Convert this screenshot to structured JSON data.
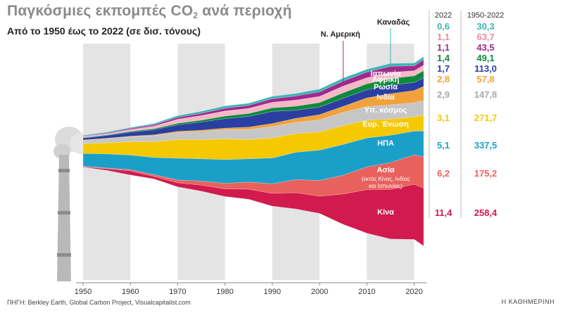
{
  "title_main": "Παγκόσμιες εκπομπές CO",
  "title_sub": "2",
  "title_tail": " ανά περιοχή",
  "subtitle": "Από το 1950 έως το 2022 (σε δισ. τόνους)",
  "source": "ΠΗΓΗ: Berkley Earth, Global Carbon Project, Visualcapitalist.com",
  "brand": "Η ΚΑΘΗΜΕΡΙΝΗ",
  "col_2022_header": "2022",
  "col_total_header": "1950-2022",
  "chart_data": {
    "type": "area",
    "title": "Παγκόσμιες εκπομπές CO2 ανά περιοχή",
    "subtitle": "Από το 1950 έως το 2022 (σε δισ. τόνους)",
    "x": [
      1950,
      1955,
      1960,
      1965,
      1970,
      1975,
      1980,
      1985,
      1990,
      1995,
      2000,
      2005,
      2010,
      2015,
      2020,
      2022
    ],
    "xticks": [
      "1950",
      "1960",
      "1970",
      "1980",
      "1990",
      "2000",
      "2010",
      "2020"
    ],
    "xlim": [
      1950,
      2022
    ],
    "decade_shading": true,
    "series": [
      {
        "name": "Κίνα",
        "color": "#d11a4e",
        "value_2022": "11,4",
        "total": "258,4",
        "values": [
          0.08,
          0.3,
          0.8,
          0.5,
          0.8,
          1.2,
          1.5,
          2.0,
          2.5,
          3.2,
          3.4,
          6.0,
          8.6,
          9.8,
          10.9,
          11.4
        ]
      },
      {
        "name": "Ασία",
        "note": "(εκτός Κίνας, Ινδίας και Ιαπωνίας)",
        "color": "#e8615c",
        "value_2022": "6,2",
        "total": "175,2",
        "values": [
          0.1,
          0.15,
          0.25,
          0.35,
          0.55,
          0.8,
          1.1,
          1.4,
          1.9,
          2.6,
          3.1,
          3.7,
          4.5,
          5.3,
          5.8,
          6.2
        ]
      },
      {
        "name": "ΗΠΑ",
        "color": "#1aa0c8",
        "value_2022": "5,1",
        "total": "337,5",
        "values": [
          2.5,
          2.8,
          2.9,
          3.4,
          4.3,
          4.4,
          4.7,
          4.6,
          5.1,
          5.4,
          6.0,
          6.1,
          5.7,
          5.4,
          4.7,
          5.1
        ]
      },
      {
        "name": "Ευρ. Ένωση",
        "color": "#f5c800",
        "value_2022": "3,1",
        "total": "271,7",
        "values": [
          1.9,
          2.2,
          2.6,
          3.1,
          3.7,
          3.8,
          4.1,
          3.8,
          4.0,
          3.7,
          3.6,
          3.7,
          3.5,
          3.2,
          2.8,
          3.1
        ]
      },
      {
        "name": "Υπ. κόσμος",
        "color": "#c6c6c6",
        "value_2022": "2,9",
        "total": "147,8",
        "values": [
          0.7,
          0.8,
          1.0,
          1.2,
          1.4,
          1.6,
          1.8,
          2.0,
          2.2,
          2.2,
          2.4,
          2.6,
          2.7,
          2.8,
          2.8,
          2.9
        ]
      },
      {
        "name": "Ινδία",
        "color": "#f2a23a",
        "value_2022": "2,8",
        "total": "57,8",
        "values": [
          0.07,
          0.08,
          0.12,
          0.16,
          0.2,
          0.25,
          0.3,
          0.45,
          0.6,
          0.8,
          1.0,
          1.2,
          1.7,
          2.2,
          2.4,
          2.8
        ]
      },
      {
        "name": "Ρωσία",
        "color": "#2b3fa0",
        "value_2022": "1,7",
        "total": "113,0",
        "values": [
          0.4,
          0.55,
          0.8,
          1.0,
          1.3,
          1.6,
          1.9,
          2.1,
          2.4,
          1.6,
          1.5,
          1.6,
          1.6,
          1.7,
          1.6,
          1.7
        ]
      },
      {
        "name": "Αφρική",
        "color": "#0e8a3c",
        "value_2022": "1,4",
        "total": "49,1",
        "values": [
          0.1,
          0.13,
          0.17,
          0.22,
          0.3,
          0.38,
          0.5,
          0.6,
          0.7,
          0.8,
          0.9,
          1.1,
          1.2,
          1.3,
          1.3,
          1.4
        ]
      },
      {
        "name": "Ιαπωνία",
        "color": "#f6b8c6",
        "value_2022": "1,1",
        "total": "63,7",
        "values": [
          0.15,
          0.22,
          0.35,
          0.5,
          0.8,
          0.9,
          1.0,
          1.0,
          1.1,
          1.2,
          1.2,
          1.3,
          1.2,
          1.2,
          1.0,
          1.1
        ]
      },
      {
        "name": "Ν. Αμερική",
        "color": "#9e2a8c",
        "value_2022": "1,1",
        "total": "43,5",
        "values": [
          0.1,
          0.14,
          0.2,
          0.26,
          0.35,
          0.45,
          0.55,
          0.6,
          0.7,
          0.8,
          0.9,
          1.0,
          1.1,
          1.2,
          1.0,
          1.1
        ]
      },
      {
        "name": "Καναδάς",
        "color": "#3cb4b4",
        "value_2022": "0,6",
        "total": "30,3",
        "values": [
          0.15,
          0.18,
          0.2,
          0.25,
          0.35,
          0.4,
          0.45,
          0.43,
          0.46,
          0.5,
          0.56,
          0.58,
          0.56,
          0.57,
          0.53,
          0.6
        ]
      }
    ]
  }
}
